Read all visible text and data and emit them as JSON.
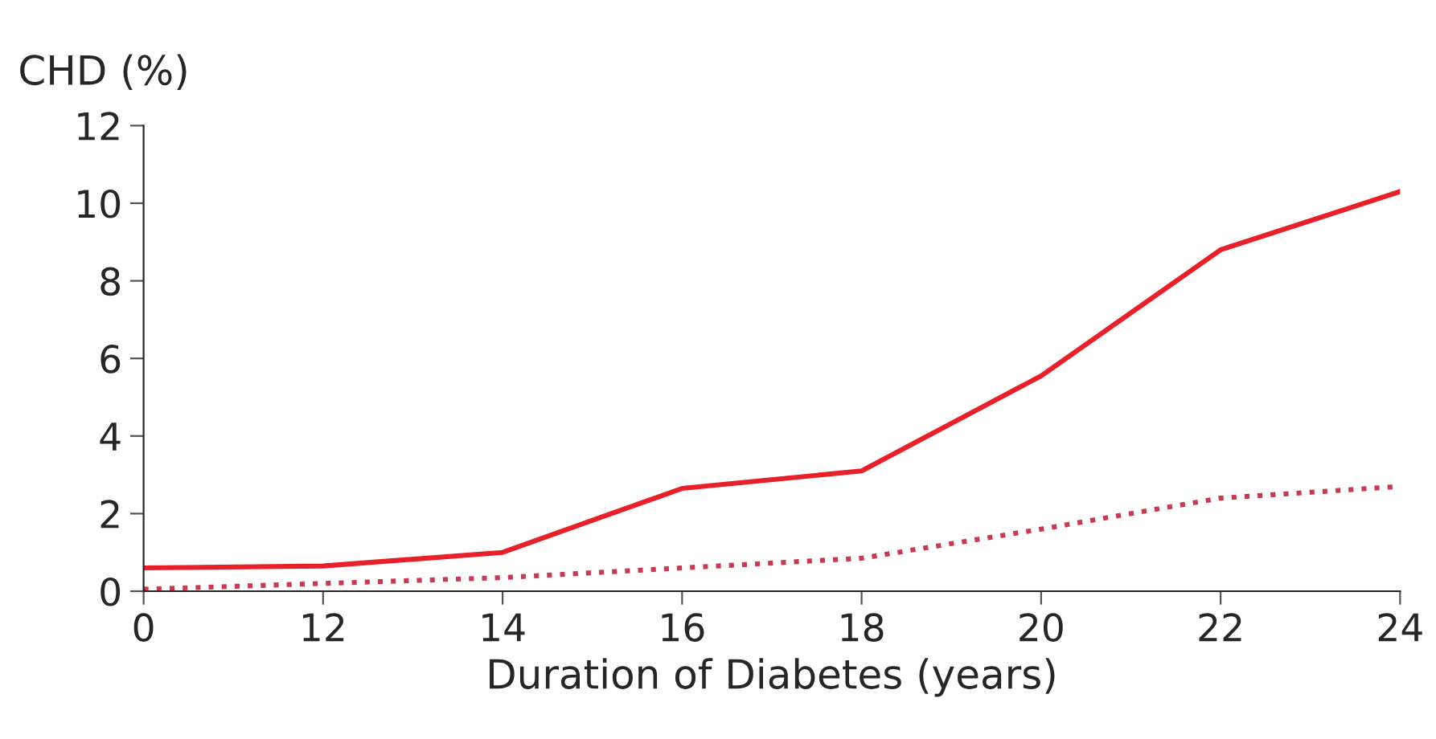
{
  "chart_data": {
    "type": "line",
    "ylabel": "CHD (%)",
    "xlabel": "Duration of Diabetes (years)",
    "categories": [
      "0",
      "12",
      "14",
      "16",
      "18",
      "20",
      "22",
      "24"
    ],
    "series": [
      {
        "color": "#e8202a",
        "line_style": "solid",
        "values": [
          0.6,
          0.65,
          1.0,
          2.65,
          3.1,
          5.55,
          8.8,
          10.3
        ]
      },
      {
        "color": "#c83a52",
        "line_style": "dotted",
        "values": [
          0.05,
          0.2,
          0.35,
          0.6,
          0.85,
          1.6,
          2.4,
          2.7
        ]
      }
    ],
    "ylim": [
      0,
      12
    ],
    "yticks": [
      0,
      2,
      4,
      6,
      8,
      10,
      12
    ],
    "grid": false,
    "marker": "none"
  }
}
